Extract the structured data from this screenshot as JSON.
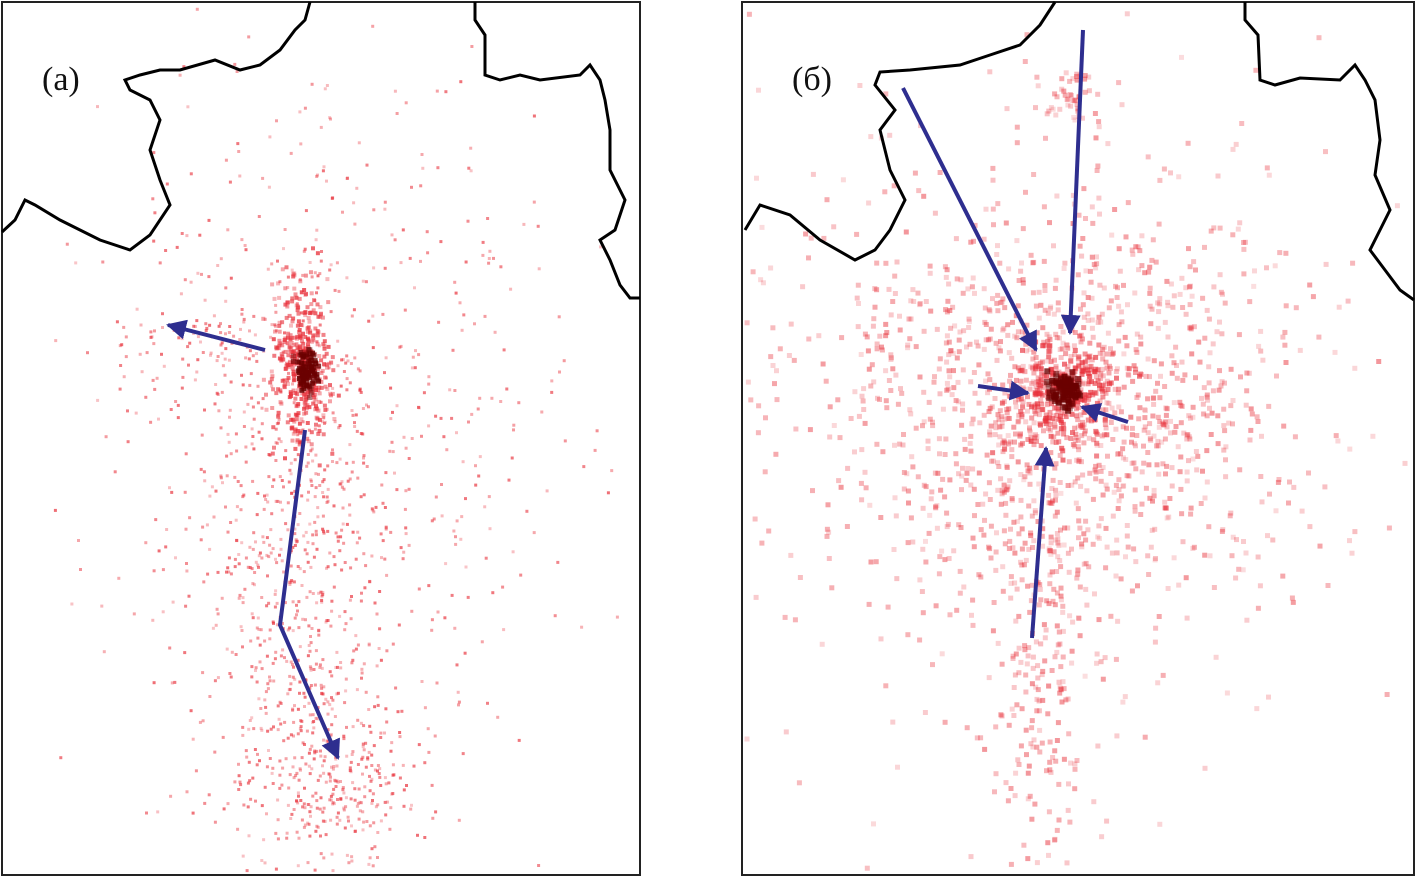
{
  "panels": [
    {
      "label": "(а)"
    },
    {
      "label": "(б)"
    }
  ],
  "colors": {
    "points": "#e8303a",
    "core": "#6b0000",
    "arrows": "#2e2e8f",
    "border": "#000000"
  }
}
